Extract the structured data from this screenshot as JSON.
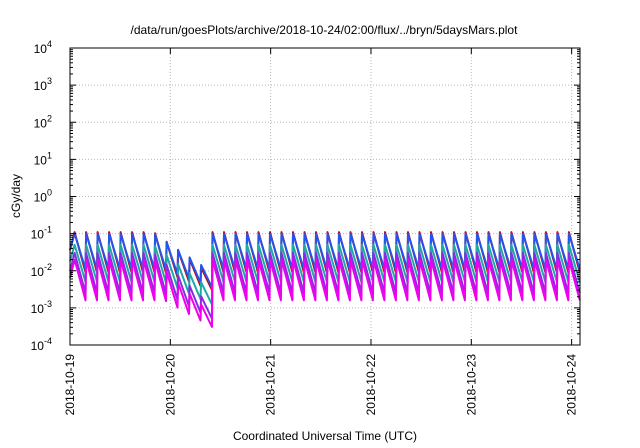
{
  "chart_data": {
    "type": "line",
    "title": "/data/run/goesPlots/archive/2018-10-24/02:00/flux/../bryn/5daysMars.plot",
    "xlabel": "Coordinated Universal Time (UTC)",
    "ylabel": "cGy/day",
    "y_scale": "log",
    "ylim": [
      0.0001,
      10000
    ],
    "y_ticks": [
      {
        "value": 0.0001,
        "base": "10",
        "exp": "-4"
      },
      {
        "value": 0.001,
        "base": "10",
        "exp": "-3"
      },
      {
        "value": 0.01,
        "base": "10",
        "exp": "-2"
      },
      {
        "value": 0.1,
        "base": "10",
        "exp": "-1"
      },
      {
        "value": 1,
        "base": "10",
        "exp": "0"
      },
      {
        "value": 10,
        "base": "10",
        "exp": "1"
      },
      {
        "value": 100,
        "base": "10",
        "exp": "2"
      },
      {
        "value": 1000,
        "base": "10",
        "exp": "3"
      },
      {
        "value": 10000,
        "base": "10",
        "exp": "4"
      }
    ],
    "xlim": [
      "2018-10-19 00:00",
      "2018-10-24 02:00"
    ],
    "x_ticks": [
      "2018-10-19",
      "2018-10-20",
      "2018-10-21",
      "2018-10-22",
      "2018-10-23",
      "2018-10-24"
    ],
    "grid": true,
    "legend": "none",
    "sawtooth_period_hours": 2.75,
    "series": [
      {
        "color": "#cc0000",
        "peak_cgy_per_day": 0.11,
        "trough_cgy_per_day": 0.009,
        "dip_min_cgy_per_day": 0.003
      },
      {
        "color": "#2255ee",
        "peak_cgy_per_day": 0.1,
        "trough_cgy_per_day": 0.011,
        "dip_min_cgy_per_day": 0.0035
      },
      {
        "color": "#1fa8a8",
        "peak_cgy_per_day": 0.05,
        "trough_cgy_per_day": 0.005,
        "dip_min_cgy_per_day": 0.0012
      },
      {
        "color": "#8a2be2",
        "peak_cgy_per_day": 0.03,
        "trough_cgy_per_day": 0.0025,
        "dip_min_cgy_per_day": 0.0005
      },
      {
        "color": "#ee00ee",
        "peak_cgy_per_day": 0.02,
        "trough_cgy_per_day": 0.0016,
        "dip_min_cgy_per_day": 0.0003
      }
    ]
  }
}
